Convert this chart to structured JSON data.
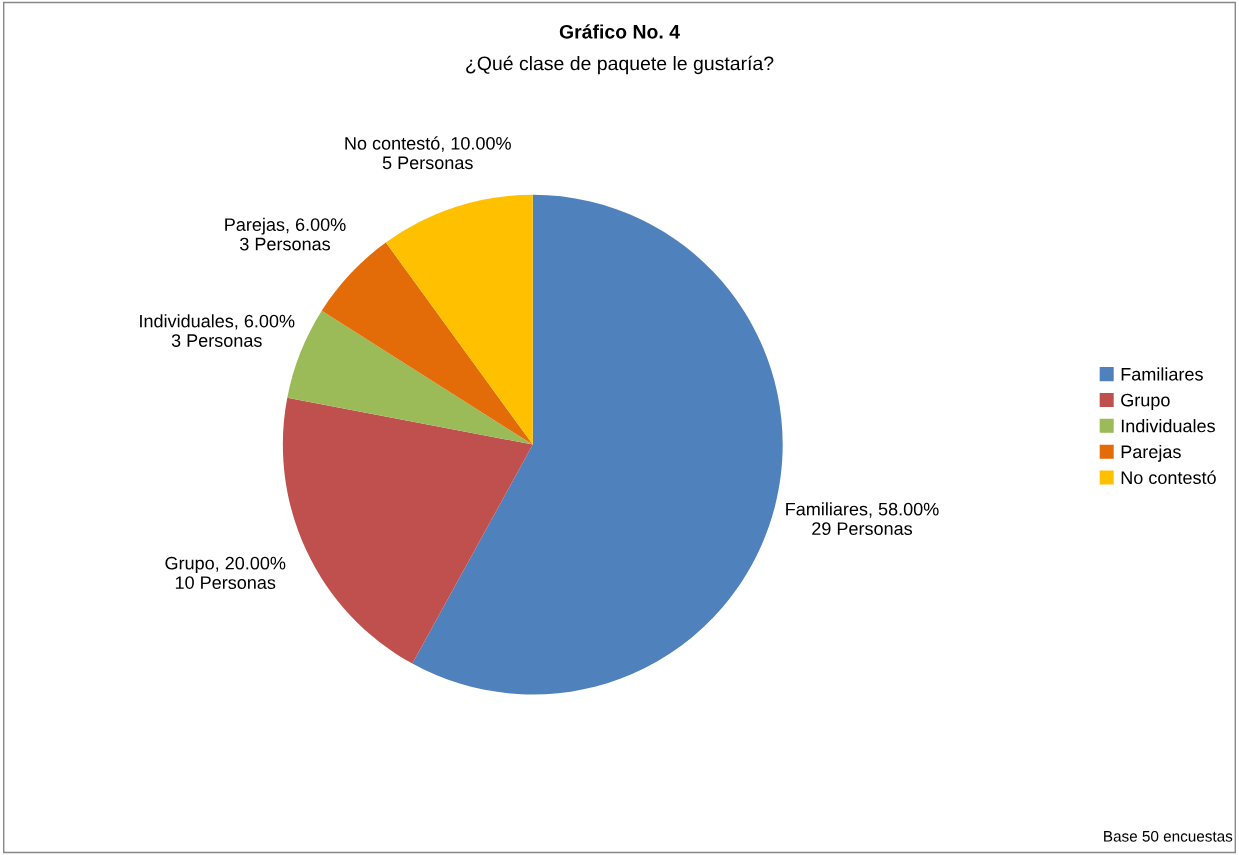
{
  "chart_data": {
    "type": "pie",
    "title": "Gráfico No. 4",
    "subtitle": "¿Qué clase de paquete le gustaría?",
    "categories": [
      "Familiares",
      "Grupo",
      "Individuales",
      "Parejas",
      "No contestó"
    ],
    "values": [
      29,
      10,
      3,
      3,
      5
    ],
    "colors": [
      "#4f81bd",
      "#c0504d",
      "#9bbb59",
      "#e36c09",
      "#ffc000"
    ],
    "value_labels": [
      "Familiares, 58.00%\n29 Personas",
      "Grupo, 20.00%\n10 Personas",
      "Individuales, 6.00%\n3 Personas",
      "Parejas, 6.00%\n3 Personas",
      "No contestó, 10.00%\n5 Personas"
    ],
    "legend": "right",
    "annotations": [
      "Base 50 encuestas"
    ]
  }
}
